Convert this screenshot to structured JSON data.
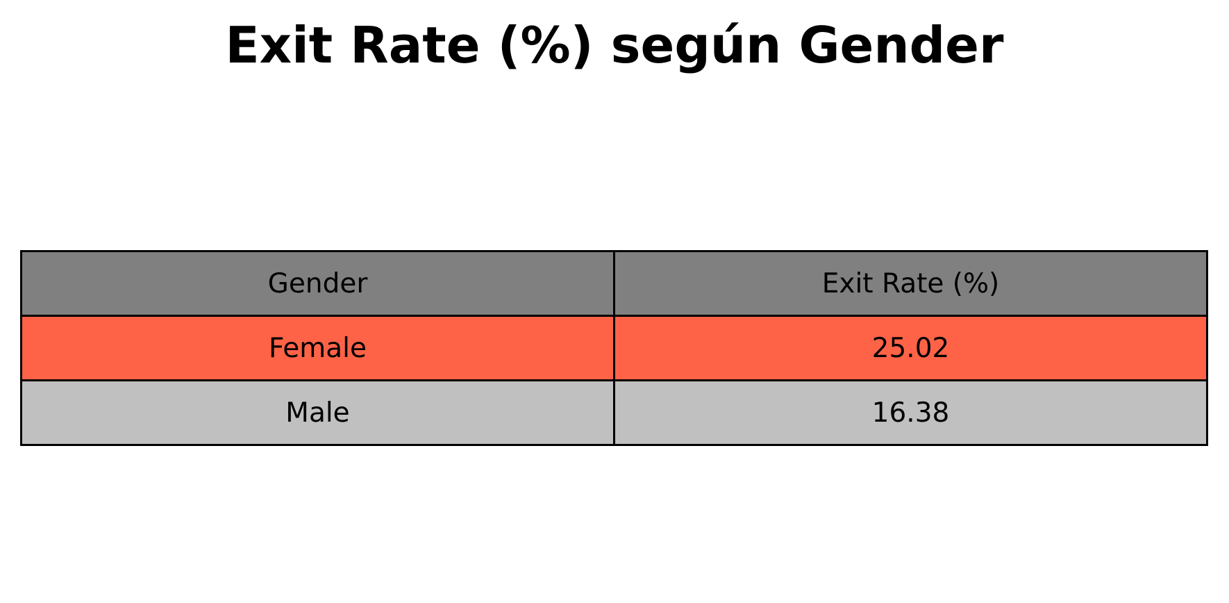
{
  "title": "Exit Rate (%) según Gender",
  "colors": {
    "header_bg": "#808080",
    "highlight_row_bg": "#ff6347",
    "normal_row_bg": "#c0c0c0",
    "border": "#000000"
  },
  "chart_data": {
    "type": "table",
    "title": "Exit Rate (%) según Gender",
    "columns": [
      "Gender",
      "Exit Rate (%)"
    ],
    "rows": [
      {
        "label": "Female",
        "value": "25.02",
        "highlighted": true
      },
      {
        "label": "Male",
        "value": "16.38",
        "highlighted": false
      }
    ]
  }
}
